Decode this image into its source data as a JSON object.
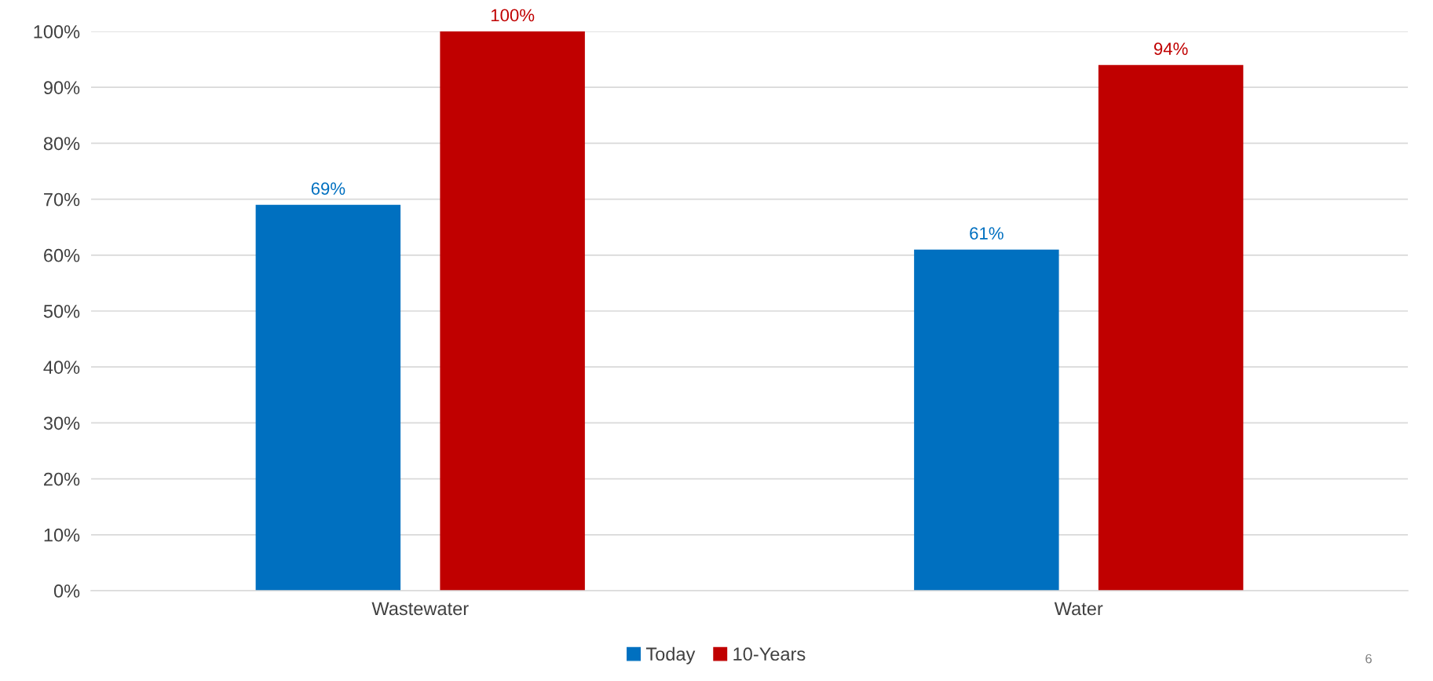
{
  "chart_data": {
    "type": "bar",
    "categories": [
      "Wastewater",
      "Water"
    ],
    "series": [
      {
        "name": "Today",
        "color": "#0070c0",
        "values": [
          69,
          61
        ]
      },
      {
        "name": "10-Years",
        "color": "#c00000",
        "values": [
          100,
          94
        ]
      }
    ],
    "ylim": [
      0,
      100
    ],
    "yticks": [
      {
        "value": 0,
        "label": "0%"
      },
      {
        "value": 10,
        "label": "10%"
      },
      {
        "value": 20,
        "label": "20%"
      },
      {
        "value": 30,
        "label": "30%"
      },
      {
        "value": 40,
        "label": "40%"
      },
      {
        "value": 50,
        "label": "50%"
      },
      {
        "value": 60,
        "label": "60%"
      },
      {
        "value": 70,
        "label": "70%"
      },
      {
        "value": 80,
        "label": "80%"
      },
      {
        "value": 90,
        "label": "90%"
      },
      {
        "value": 100,
        "label": "100%"
      }
    ],
    "value_labels": [
      [
        "69%",
        "61%"
      ],
      [
        "100%",
        "94%"
      ]
    ],
    "grid": "y",
    "legend": "bottom",
    "annotations": [
      "6"
    ]
  }
}
